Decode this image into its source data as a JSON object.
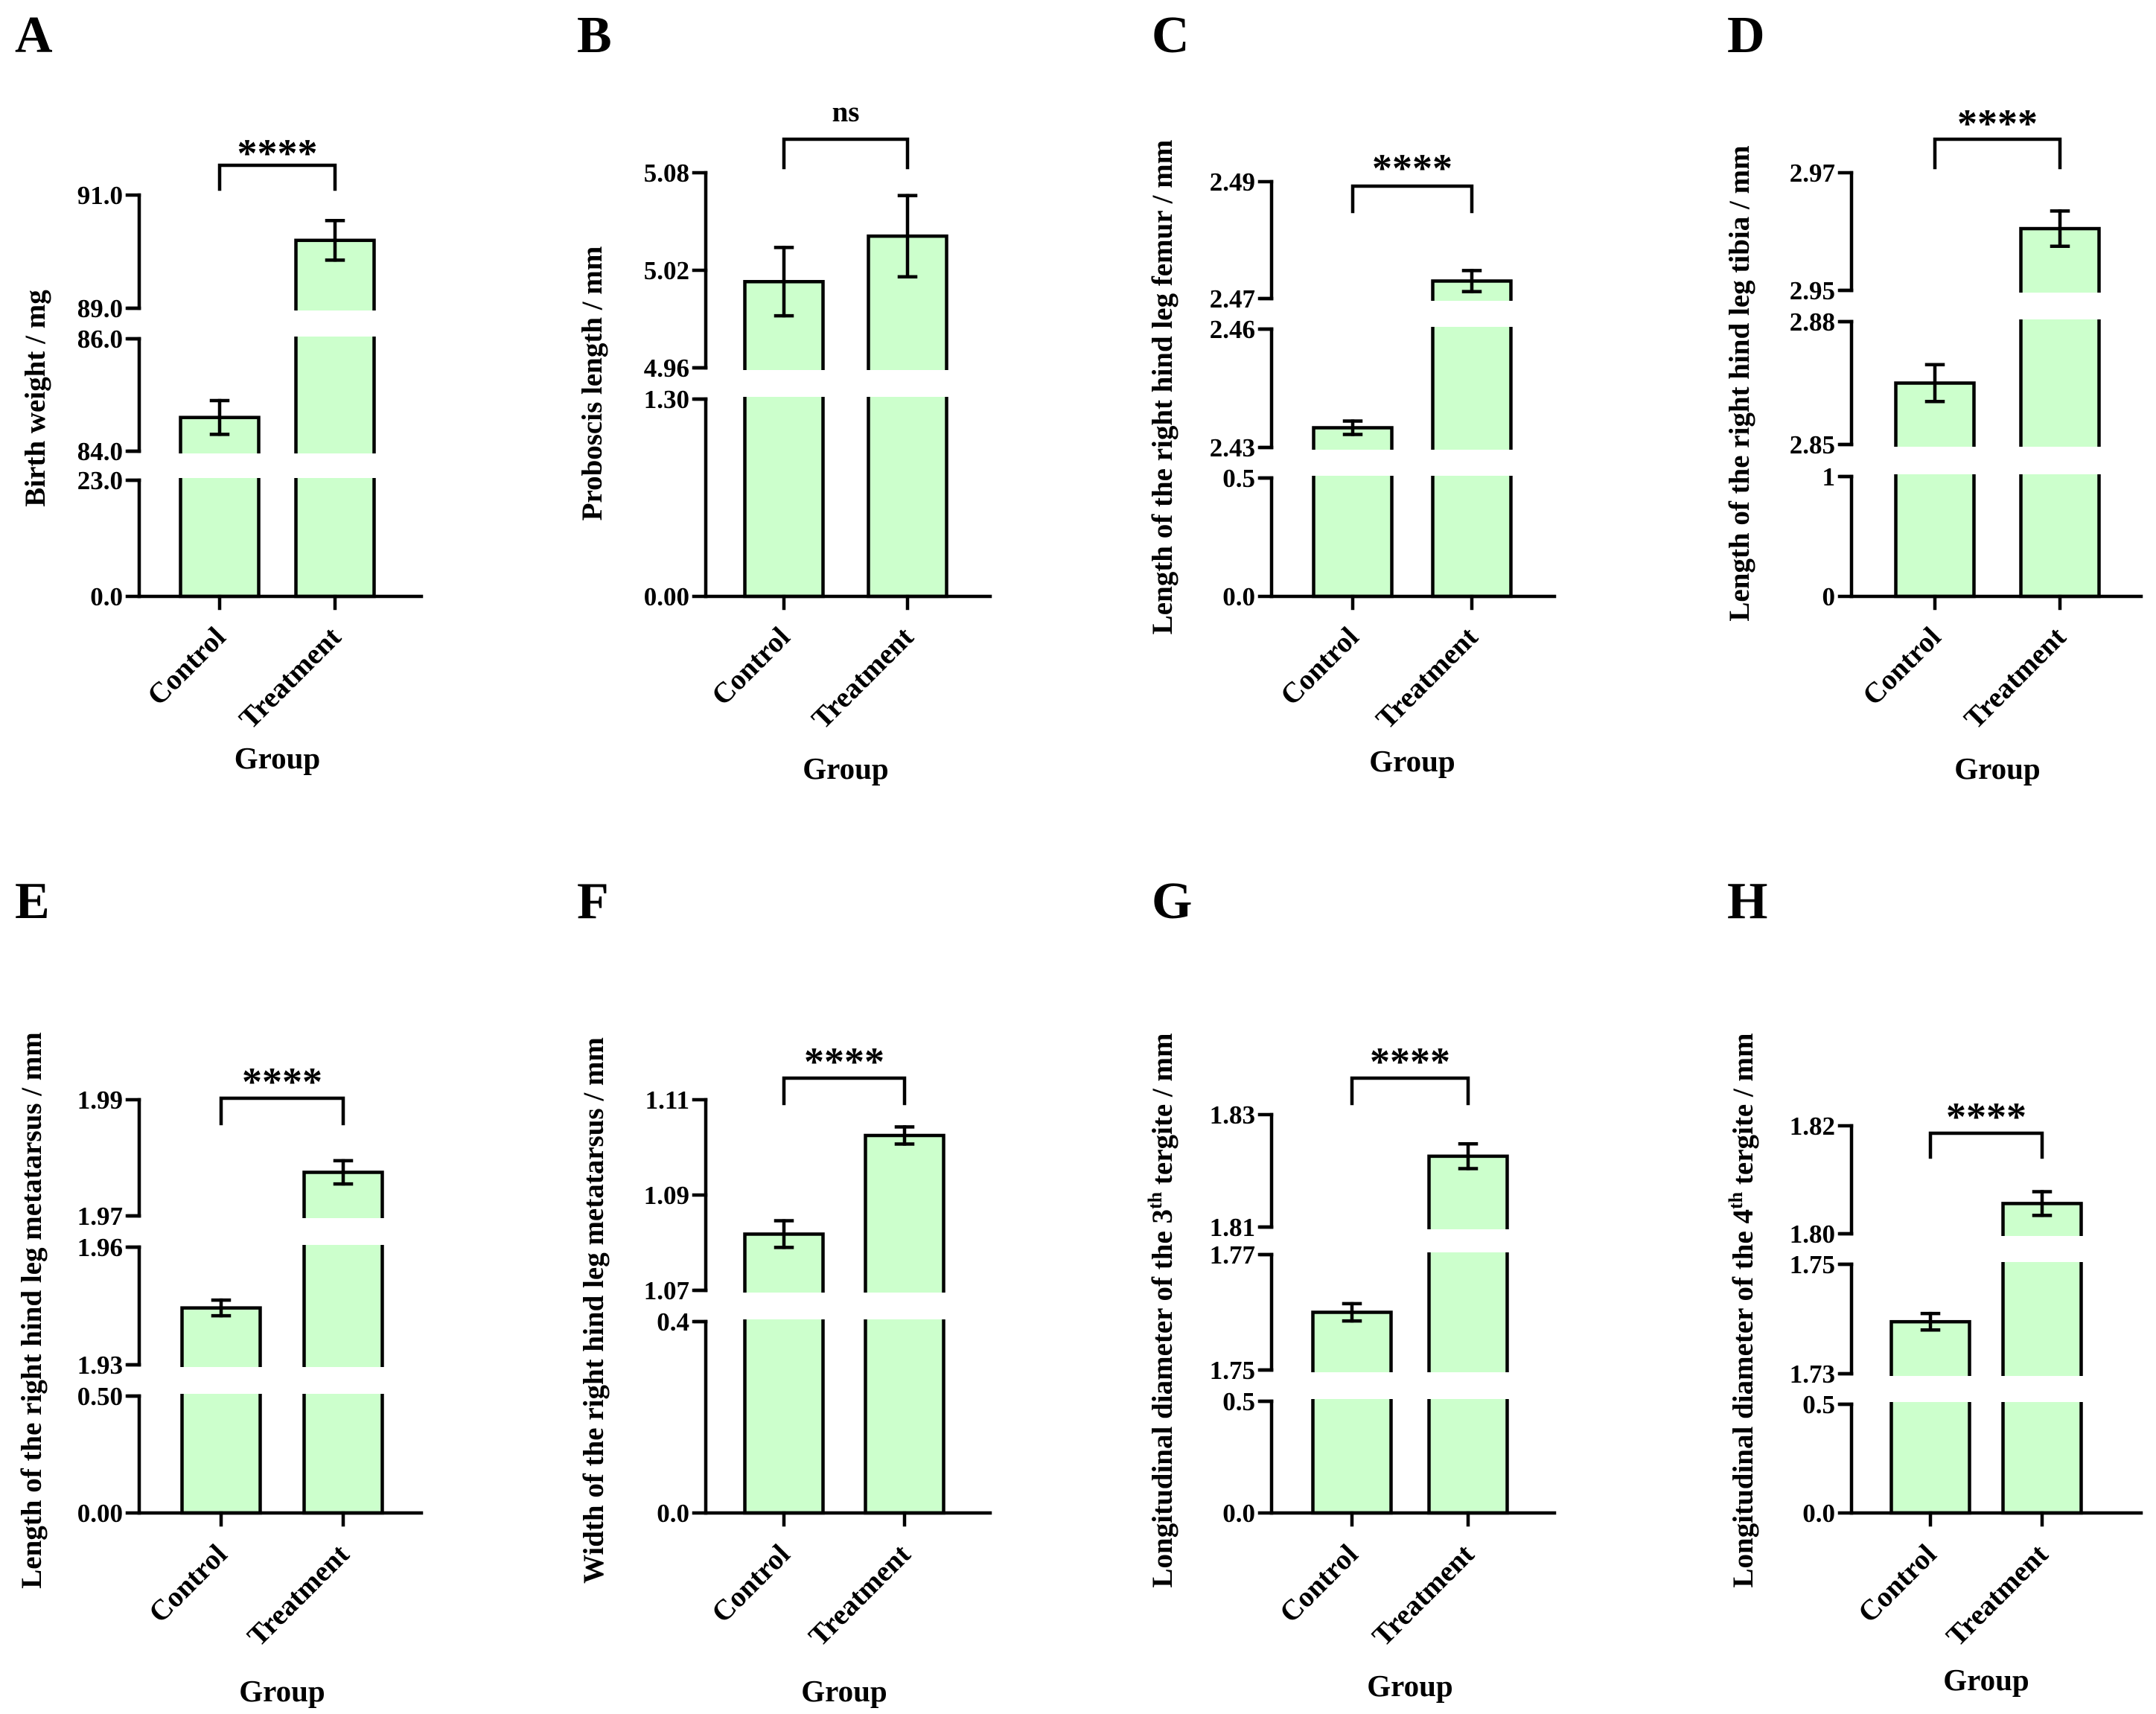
{
  "figure": {
    "bar_color": "#ccffcc",
    "axis_color": "#000000"
  },
  "chart_data": [
    {
      "panel": "A",
      "type": "bar",
      "categories": [
        "Control",
        "Treatment"
      ],
      "values": [
        84.6,
        90.2
      ],
      "errors": [
        0.3,
        0.35
      ],
      "ylabel": "Birth weight / mg",
      "xlabel": "Group",
      "segments": [
        {
          "range": [
            0.0,
            23.0
          ],
          "ticks": [
            "0.0",
            "23.0"
          ]
        },
        {
          "range": [
            84.0,
            86.0
          ],
          "ticks": [
            "84.0",
            "86.0"
          ]
        },
        {
          "range": [
            89.0,
            91.0
          ],
          "ticks": [
            "89.0",
            "91.0"
          ]
        }
      ],
      "significance": "****"
    },
    {
      "panel": "B",
      "type": "bar",
      "categories": [
        "Control",
        "Treatment"
      ],
      "values": [
        5.013,
        5.041
      ],
      "errors": [
        0.021,
        0.025
      ],
      "ylabel": "Proboscis length / mm",
      "xlabel": "Group",
      "segments": [
        {
          "range": [
            0.0,
            1.3
          ],
          "ticks": [
            "0.00",
            "1.30"
          ]
        },
        {
          "range": [
            4.96,
            5.08
          ],
          "ticks": [
            "4.96",
            "5.02",
            "5.08"
          ]
        }
      ],
      "significance": "ns"
    },
    {
      "panel": "C",
      "type": "bar",
      "categories": [
        "Control",
        "Treatment"
      ],
      "values": [
        2.435,
        2.473
      ],
      "errors": [
        0.0017,
        0.0018
      ],
      "ylabel": "Length of the right hind leg femur / mm",
      "xlabel": "Group",
      "segments": [
        {
          "range": [
            0.0,
            0.5
          ],
          "ticks": [
            "0.0",
            "0.5"
          ]
        },
        {
          "range": [
            2.43,
            2.46
          ],
          "ticks": [
            "2.43",
            "2.46"
          ]
        },
        {
          "range": [
            2.47,
            2.49
          ],
          "ticks": [
            "2.47",
            "2.49"
          ]
        }
      ],
      "significance": "****"
    },
    {
      "panel": "D",
      "type": "bar",
      "categories": [
        "Control",
        "Treatment"
      ],
      "values": [
        2.865,
        2.9605
      ],
      "errors": [
        0.0045,
        0.003
      ],
      "ylabel": "Length of the right hind leg tibia / mm",
      "xlabel": "Group",
      "segments": [
        {
          "range": [
            0,
            1
          ],
          "ticks": [
            "0",
            "1"
          ]
        },
        {
          "range": [
            2.85,
            2.88
          ],
          "ticks": [
            "2.85",
            "2.88"
          ]
        },
        {
          "range": [
            2.95,
            2.97
          ],
          "ticks": [
            "2.95",
            "2.97"
          ]
        }
      ],
      "significance": "****"
    },
    {
      "panel": "E",
      "type": "bar",
      "categories": [
        "Control",
        "Treatment"
      ],
      "values": [
        1.9445,
        1.9775
      ],
      "errors": [
        0.002,
        0.002
      ],
      "ylabel": "Length of the right hind leg metatarsus / mm",
      "xlabel": "Group",
      "segments": [
        {
          "range": [
            0.0,
            0.5
          ],
          "ticks": [
            "0.00",
            "0.50"
          ]
        },
        {
          "range": [
            1.93,
            1.96
          ],
          "ticks": [
            "1.93",
            "1.96"
          ]
        },
        {
          "range": [
            1.97,
            1.99
          ],
          "ticks": [
            "1.97",
            "1.99"
          ]
        }
      ],
      "significance": "****"
    },
    {
      "panel": "F",
      "type": "bar",
      "categories": [
        "Control",
        "Treatment"
      ],
      "values": [
        1.0818,
        1.1025
      ],
      "errors": [
        0.0028,
        0.0018
      ],
      "ylabel": "Width of the right hind leg metatarsus / mm",
      "xlabel": "Group",
      "segments": [
        {
          "range": [
            0.0,
            0.4
          ],
          "ticks": [
            "0.0",
            "0.4"
          ]
        },
        {
          "range": [
            1.07,
            1.11
          ],
          "ticks": [
            "1.07",
            "1.09",
            "1.11"
          ]
        }
      ],
      "significance": "****"
    },
    {
      "panel": "G",
      "type": "bar",
      "categories": [
        "Control",
        "Treatment"
      ],
      "values": [
        1.76,
        1.8226
      ],
      "errors": [
        0.0015,
        0.0022
      ],
      "ylabel_parts": [
        "Longitudinal diameter of the 3",
        "th",
        " tergite / mm"
      ],
      "xlabel": "Group",
      "segments": [
        {
          "range": [
            0.0,
            0.5
          ],
          "ticks": [
            "0.0",
            "0.5"
          ]
        },
        {
          "range": [
            1.75,
            1.77
          ],
          "ticks": [
            "1.75",
            "1.77"
          ]
        },
        {
          "range": [
            1.81,
            1.83
          ],
          "ticks": [
            "1.81",
            "1.83"
          ]
        }
      ],
      "significance": "****"
    },
    {
      "panel": "H",
      "type": "bar",
      "categories": [
        "Control",
        "Treatment"
      ],
      "values": [
        1.7395,
        1.8056
      ],
      "errors": [
        0.0015,
        0.0022
      ],
      "ylabel_parts": [
        "Longitudinal diameter of the 4",
        "th",
        " tergite / mm"
      ],
      "xlabel": "Group",
      "segments": [
        {
          "range": [
            0.0,
            0.5
          ],
          "ticks": [
            "0.0",
            "0.5"
          ]
        },
        {
          "range": [
            1.73,
            1.75
          ],
          "ticks": [
            "1.73",
            "1.75"
          ]
        },
        {
          "range": [
            1.8,
            1.82
          ],
          "ticks": [
            "1.80",
            "1.82"
          ]
        }
      ],
      "significance": "****"
    }
  ]
}
